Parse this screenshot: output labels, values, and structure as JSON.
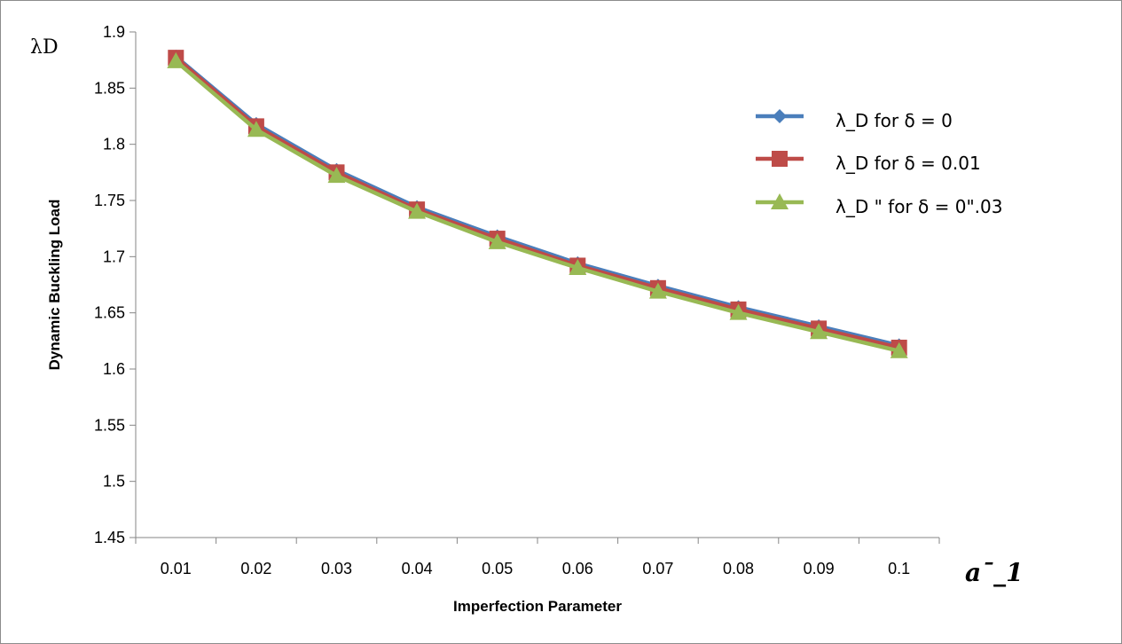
{
  "chart_data": {
    "type": "line",
    "title": "",
    "xlabel": "Imperfection Parameter",
    "ylabel": "Dynamic Buckling Load",
    "corner_ylabel": "λD",
    "corner_xlabel": "a¯_1",
    "categories": [
      "0.01",
      "0.02",
      "0.03",
      "0.04",
      "0.05",
      "0.06",
      "0.07",
      "0.08",
      "0.09",
      "0.1"
    ],
    "ylim": [
      1.45,
      1.9
    ],
    "yticks": [
      1.45,
      1.5,
      1.55,
      1.6,
      1.65,
      1.7,
      1.75,
      1.8,
      1.85,
      1.9
    ],
    "ytick_labels": [
      "1.45",
      "1.5",
      "1.55",
      "1.6",
      "1.65",
      "1.7",
      "1.75",
      "1.8",
      "1.85",
      "1.9"
    ],
    "grid": false,
    "legend_position": "right",
    "series": [
      {
        "name": " λ_D  for  δ = 0",
        "color": "#4a7ebb",
        "marker": "diamond",
        "values": [
          1.878,
          1.818,
          1.777,
          1.744,
          1.718,
          1.694,
          1.674,
          1.655,
          1.638,
          1.621
        ]
      },
      {
        "name": "λ_D  for δ = 0.01",
        "color": "#be4b48",
        "marker": "square",
        "values": [
          1.877,
          1.816,
          1.775,
          1.742,
          1.716,
          1.692,
          1.672,
          1.653,
          1.636,
          1.619
        ]
      },
      {
        "name": "λ_D \"  for δ = 0\".03",
        "color": "#98b954",
        "marker": "triangle",
        "values": [
          1.874,
          1.813,
          1.772,
          1.74,
          1.713,
          1.69,
          1.669,
          1.65,
          1.633,
          1.616
        ]
      }
    ]
  }
}
